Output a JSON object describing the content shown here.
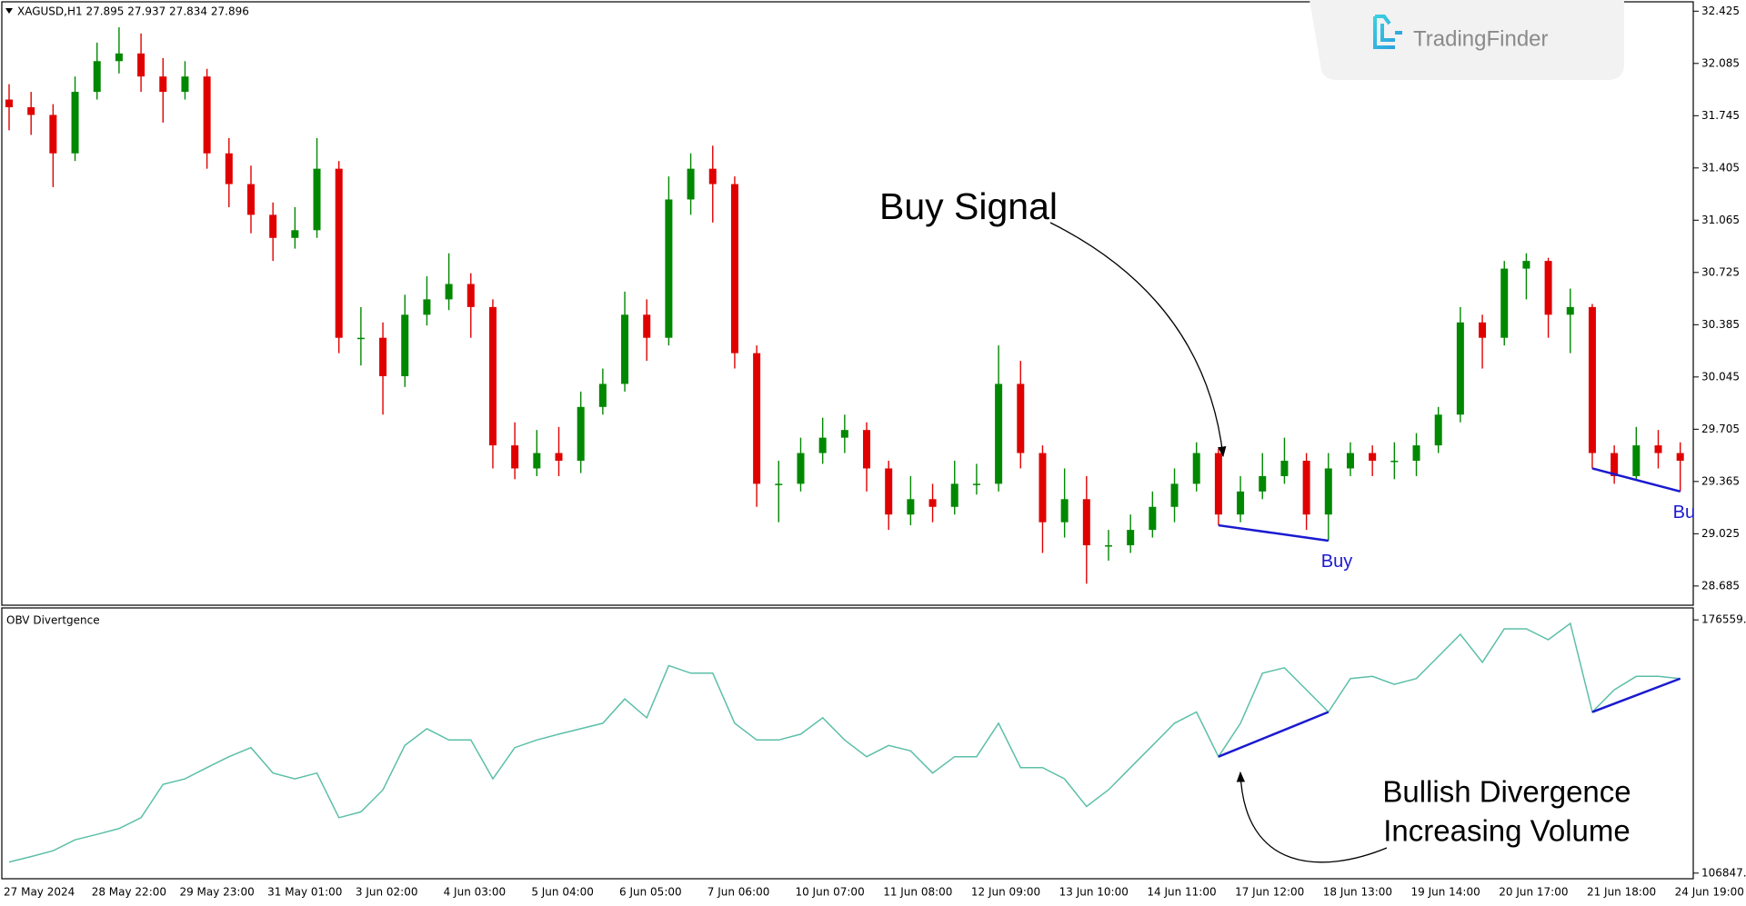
{
  "chart_data": [
    {
      "type": "candlestick",
      "title": "XAGUSD,H1 27.895 27.937 27.834 27.896",
      "categories": [
        "27 May 2024",
        null,
        null,
        null,
        "28 May 22:00",
        null,
        null,
        null,
        "29 May 23:00",
        null,
        null,
        null,
        "31 May 01:00",
        null,
        null,
        null,
        "3 Jun 02:00",
        null,
        null,
        null,
        "4 Jun 03:00",
        null,
        null,
        null,
        "5 Jun 04:00",
        null,
        null,
        null,
        "6 Jun 05:00",
        null,
        null,
        null,
        "7 Jun 06:00",
        null,
        null,
        null,
        "10 Jun 07:00",
        null,
        null,
        null,
        "11 Jun 08:00",
        null,
        null,
        null,
        "12 Jun 09:00",
        null,
        null,
        null,
        "13 Jun 10:00",
        null,
        null,
        null,
        "14 Jun 11:00",
        null,
        null,
        null,
        "17 Jun 12:00",
        null,
        null,
        null,
        "18 Jun 13:00",
        null,
        null,
        null,
        "19 Jun 14:00",
        null,
        null,
        null,
        "20 Jun 17:00",
        null,
        null,
        null,
        "21 Jun 18:00",
        null,
        null,
        null,
        "24 Jun 19:00"
      ],
      "open": [
        31.85,
        31.8,
        31.75,
        31.5,
        31.9,
        32.1,
        32.15,
        32.0,
        31.9,
        32.0,
        31.5,
        31.3,
        31.1,
        30.95,
        31.0,
        31.4,
        30.3,
        30.3,
        30.05,
        30.45,
        30.55,
        30.65,
        30.5,
        29.6,
        29.45,
        29.55,
        29.5,
        29.85,
        30.0,
        30.45,
        30.3,
        31.2,
        31.4,
        31.3,
        30.2,
        29.35,
        29.35,
        29.55,
        29.65,
        29.7,
        29.45,
        29.15,
        29.25,
        29.2,
        29.35,
        29.35,
        30.0,
        29.55,
        29.1,
        29.25,
        28.95,
        28.95,
        29.05,
        29.2,
        29.35,
        29.55,
        29.15,
        29.3,
        29.4,
        29.5,
        29.15,
        29.45,
        29.55,
        29.5,
        29.5,
        29.6,
        29.8,
        30.4,
        30.3,
        30.75,
        30.8,
        30.45,
        30.5,
        29.55,
        29.4,
        29.6,
        29.55
      ],
      "high": [
        31.95,
        31.9,
        31.82,
        32.0,
        32.22,
        32.32,
        32.28,
        32.12,
        32.1,
        32.05,
        31.6,
        31.42,
        31.18,
        31.15,
        31.6,
        31.45,
        30.5,
        30.4,
        30.58,
        30.7,
        30.85,
        30.72,
        30.55,
        29.75,
        29.7,
        29.72,
        29.95,
        30.1,
        30.6,
        30.55,
        31.35,
        31.5,
        31.55,
        31.35,
        30.25,
        29.5,
        29.65,
        29.78,
        29.8,
        29.75,
        29.5,
        29.4,
        29.35,
        29.5,
        29.48,
        30.25,
        30.15,
        29.6,
        29.45,
        29.4,
        29.05,
        29.15,
        29.3,
        29.45,
        29.62,
        29.58,
        29.4,
        29.55,
        29.65,
        29.55,
        29.55,
        29.62,
        29.6,
        29.62,
        29.68,
        29.85,
        30.5,
        30.45,
        30.8,
        30.85,
        30.82,
        30.62,
        30.52,
        29.6,
        29.72,
        29.7,
        29.62
      ],
      "low": [
        31.65,
        31.62,
        31.28,
        31.45,
        31.85,
        32.02,
        31.9,
        31.7,
        31.85,
        31.4,
        31.15,
        30.98,
        30.8,
        30.88,
        30.95,
        30.2,
        30.12,
        29.8,
        29.98,
        30.38,
        30.48,
        30.3,
        29.45,
        29.38,
        29.4,
        29.4,
        29.42,
        29.8,
        29.95,
        30.15,
        30.25,
        31.1,
        31.05,
        30.1,
        29.2,
        29.1,
        29.3,
        29.48,
        29.55,
        29.3,
        29.05,
        29.08,
        29.1,
        29.15,
        29.28,
        29.3,
        29.45,
        28.9,
        29.0,
        28.7,
        28.85,
        28.9,
        29.0,
        29.1,
        29.3,
        29.08,
        29.1,
        29.25,
        29.35,
        29.05,
        28.98,
        29.4,
        29.4,
        29.38,
        29.4,
        29.55,
        29.75,
        30.1,
        30.25,
        30.55,
        30.3,
        30.2,
        29.45,
        29.35,
        29.38,
        29.45,
        29.3
      ],
      "close": [
        31.8,
        31.75,
        31.5,
        31.9,
        32.1,
        32.15,
        32.0,
        31.9,
        32.0,
        31.5,
        31.3,
        31.1,
        30.95,
        31.0,
        31.4,
        30.3,
        30.3,
        30.05,
        30.45,
        30.55,
        30.65,
        30.5,
        29.6,
        29.45,
        29.55,
        29.5,
        29.85,
        30.0,
        30.45,
        30.3,
        31.2,
        31.4,
        31.3,
        30.2,
        29.35,
        29.35,
        29.55,
        29.65,
        29.7,
        29.45,
        29.15,
        29.25,
        29.2,
        29.35,
        29.35,
        30.0,
        29.55,
        29.1,
        29.25,
        28.95,
        28.95,
        29.05,
        29.2,
        29.35,
        29.55,
        29.15,
        29.3,
        29.4,
        29.5,
        29.15,
        29.45,
        29.55,
        29.5,
        29.5,
        29.6,
        29.8,
        30.4,
        30.3,
        30.75,
        30.8,
        30.45,
        30.5,
        29.55,
        29.4,
        29.6,
        29.55,
        29.5
      ],
      "up_color": "#008800",
      "down_color": "#e00000",
      "ylim": [
        28.56,
        32.48
      ],
      "yticks": [
        32.425,
        32.085,
        31.745,
        31.405,
        31.065,
        30.725,
        30.385,
        30.045,
        29.705,
        29.365,
        29.025,
        28.685
      ],
      "annotation": "Buy Signal",
      "signal_labels": [
        "Buy",
        "Buy"
      ],
      "divergence_color": "#1a1ad0"
    },
    {
      "type": "line",
      "title": "OBV Divertgence",
      "values": [
        109900,
        111400,
        113000,
        116000,
        117500,
        119100,
        122100,
        131300,
        132800,
        135900,
        138900,
        141400,
        134400,
        132800,
        134400,
        122100,
        123700,
        129800,
        142000,
        146600,
        143500,
        143500,
        132800,
        141400,
        143500,
        145100,
        146600,
        148100,
        154800,
        149600,
        164000,
        161900,
        161900,
        148100,
        143500,
        143500,
        145100,
        149600,
        143500,
        138900,
        142000,
        140500,
        134400,
        138900,
        138900,
        148100,
        135900,
        135900,
        132800,
        125200,
        129800,
        135900,
        142000,
        148100,
        151200,
        138900,
        148100,
        161900,
        163400,
        157300,
        151200,
        160400,
        161000,
        158800,
        160400,
        166500,
        172600,
        164900,
        174100,
        174100,
        171100,
        175600,
        151200,
        157300,
        161000,
        161000,
        160400
      ],
      "color": "#5cbfa8",
      "ylim": [
        105300,
        179600
      ],
      "yticks": [
        176559.7,
        106847.2
      ],
      "annotations": [
        "Bullish Divergence",
        "Increasing Volume"
      ],
      "divergence_color": "#1a1ad0"
    }
  ],
  "watermark": "TradingFinder"
}
